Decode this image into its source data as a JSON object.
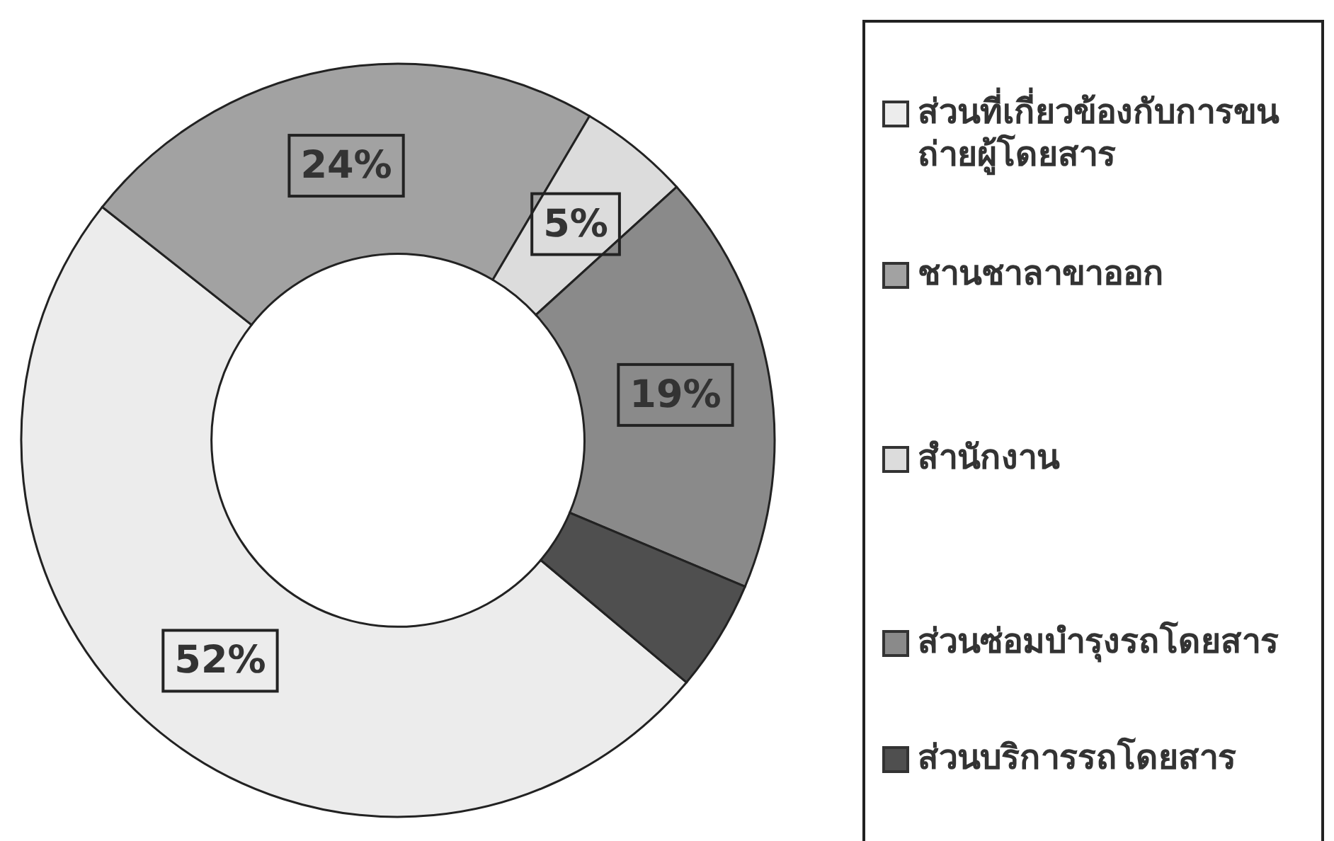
{
  "chart_data": {
    "type": "donut",
    "categories": [
      "ส่วนที่เกี่ยวข้องกับการขนถ่ายผู้โดยสาร",
      "ชานชาลาขาออก",
      "สำนักงาน",
      "ส่วนซ่อมบำรุงรถโดยสาร",
      "ส่วนบริการรถโดยสาร"
    ],
    "values": [
      52,
      24,
      5,
      19,
      5
    ],
    "value_labels": [
      "52%",
      "24%",
      "5%",
      "19%",
      null
    ],
    "colors": [
      "#ececec",
      "#a2a2a2",
      "#dcdcdc",
      "#8a8a8a",
      "#4f4f4f"
    ],
    "legend": "right"
  }
}
